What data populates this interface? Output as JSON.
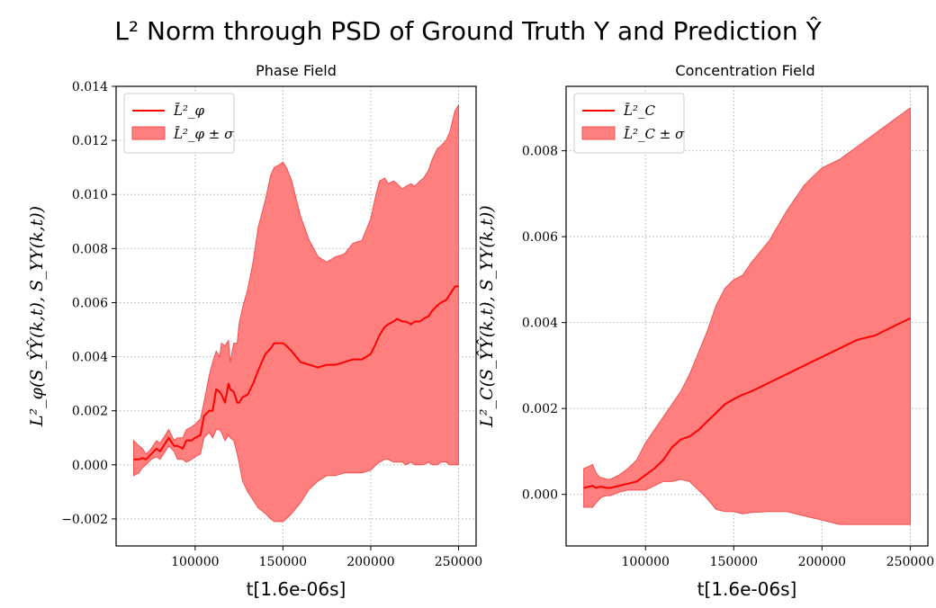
{
  "title_main": "L² Norm through PSD of Ground Truth Y and Prediction Ŷ",
  "colors": {
    "line": "#ff0000",
    "band": "#ff7f7f",
    "grid": "#b0b0b0",
    "axis": "#000000"
  },
  "chart_data": [
    {
      "type": "line",
      "title": "Phase Field",
      "xlabel": "t[1.6e-06s]",
      "ylabel": "L²_φ(S_ŶŶ(k,t), S_YY(k,t))",
      "xlim": [
        55000,
        260000
      ],
      "ylim": [
        -0.003,
        0.014
      ],
      "xticks": [
        100000,
        150000,
        200000,
        250000
      ],
      "xtick_labels": [
        "100000",
        "150000",
        "200000",
        "250000"
      ],
      "yticks": [
        -0.002,
        0.0,
        0.002,
        0.004,
        0.006,
        0.008,
        0.01,
        0.012,
        0.014
      ],
      "ytick_labels": [
        "−0.002",
        "0.000",
        "0.002",
        "0.004",
        "0.006",
        "0.008",
        "0.010",
        "0.012",
        "0.014"
      ],
      "grid": true,
      "legend": {
        "location": "top-left",
        "entries": [
          "L̄²_φ",
          "L̄²_φ ± σ"
        ]
      },
      "series": [
        {
          "name": "mean",
          "x": [
            65000,
            68000,
            70000,
            72000,
            75000,
            78000,
            80000,
            83000,
            85000,
            88000,
            90000,
            93000,
            95000,
            98000,
            100000,
            103000,
            105000,
            108000,
            110000,
            112000,
            114000,
            115000,
            117000,
            119000,
            120000,
            122000,
            124000,
            125000,
            127000,
            130000,
            133000,
            136000,
            140000,
            143000,
            145000,
            148000,
            150000,
            152000,
            155000,
            160000,
            165000,
            170000,
            175000,
            180000,
            185000,
            190000,
            195000,
            200000,
            203000,
            205000,
            208000,
            210000,
            213000,
            215000,
            218000,
            220000,
            223000,
            225000,
            228000,
            230000,
            233000,
            235000,
            238000,
            240000,
            243000,
            245000,
            248000,
            250000
          ],
          "values": [
            0.0002,
            0.0002,
            0.00025,
            0.0002,
            0.0004,
            0.0006,
            0.0005,
            0.0008,
            0.001,
            0.0007,
            0.0007,
            0.0006,
            0.0009,
            0.0009,
            0.001,
            0.0011,
            0.0018,
            0.002,
            0.002,
            0.0028,
            0.0027,
            0.0026,
            0.0023,
            0.003,
            0.0028,
            0.0027,
            0.0023,
            0.0023,
            0.0025,
            0.0026,
            0.003,
            0.0035,
            0.0041,
            0.0043,
            0.0045,
            0.0045,
            0.0045,
            0.0044,
            0.0042,
            0.0038,
            0.0037,
            0.0036,
            0.0037,
            0.0037,
            0.0038,
            0.0039,
            0.0039,
            0.0041,
            0.0045,
            0.0048,
            0.0051,
            0.0052,
            0.0053,
            0.0054,
            0.0053,
            0.0053,
            0.0052,
            0.0053,
            0.0053,
            0.0054,
            0.0055,
            0.0057,
            0.0059,
            0.006,
            0.0061,
            0.0063,
            0.0066,
            0.0066
          ]
        },
        {
          "name": "mean+sigma",
          "x": [
            65000,
            68000,
            70000,
            72000,
            75000,
            78000,
            80000,
            83000,
            85000,
            88000,
            90000,
            93000,
            95000,
            98000,
            100000,
            103000,
            105000,
            108000,
            110000,
            112000,
            114000,
            115000,
            117000,
            119000,
            120000,
            122000,
            124000,
            125000,
            127000,
            130000,
            133000,
            136000,
            140000,
            143000,
            145000,
            148000,
            150000,
            152000,
            155000,
            160000,
            165000,
            170000,
            175000,
            180000,
            185000,
            190000,
            195000,
            200000,
            203000,
            205000,
            208000,
            210000,
            213000,
            215000,
            218000,
            220000,
            223000,
            225000,
            228000,
            230000,
            233000,
            235000,
            238000,
            240000,
            243000,
            245000,
            248000,
            250000
          ],
          "values": [
            0.0009,
            0.0007,
            0.0006,
            0.0004,
            0.0006,
            0.0009,
            0.0008,
            0.0011,
            0.0013,
            0.0009,
            0.001,
            0.001,
            0.0013,
            0.0014,
            0.0015,
            0.0017,
            0.0023,
            0.0033,
            0.0038,
            0.0042,
            0.004,
            0.0045,
            0.0044,
            0.0046,
            0.0038,
            0.0045,
            0.0045,
            0.0052,
            0.0058,
            0.0065,
            0.0075,
            0.0088,
            0.0098,
            0.0107,
            0.011,
            0.0111,
            0.0112,
            0.011,
            0.0105,
            0.0092,
            0.0083,
            0.0077,
            0.0075,
            0.0077,
            0.0078,
            0.0082,
            0.0083,
            0.0091,
            0.01,
            0.0105,
            0.0106,
            0.0104,
            0.0105,
            0.0104,
            0.0102,
            0.0103,
            0.0104,
            0.0103,
            0.0105,
            0.0106,
            0.0109,
            0.0113,
            0.0117,
            0.0118,
            0.012,
            0.0123,
            0.0131,
            0.0133
          ]
        },
        {
          "name": "mean-sigma",
          "x": [
            65000,
            68000,
            70000,
            72000,
            75000,
            78000,
            80000,
            83000,
            85000,
            88000,
            90000,
            93000,
            95000,
            98000,
            100000,
            103000,
            105000,
            108000,
            110000,
            112000,
            114000,
            115000,
            117000,
            119000,
            120000,
            122000,
            124000,
            125000,
            127000,
            130000,
            133000,
            136000,
            140000,
            143000,
            145000,
            148000,
            150000,
            152000,
            155000,
            160000,
            165000,
            170000,
            175000,
            180000,
            185000,
            190000,
            195000,
            200000,
            203000,
            205000,
            208000,
            210000,
            213000,
            215000,
            218000,
            220000,
            223000,
            225000,
            228000,
            230000,
            233000,
            235000,
            238000,
            240000,
            243000,
            245000,
            248000,
            250000
          ],
          "values": [
            -0.0004,
            -0.0003,
            -0.0001,
            0.0,
            0.0002,
            0.0003,
            0.0002,
            0.0005,
            0.0007,
            0.0005,
            0.0002,
            0.0002,
            0.0001,
            0.0002,
            0.0003,
            0.0004,
            0.001,
            0.0012,
            0.001,
            0.0013,
            0.0013,
            0.0012,
            0.0009,
            0.0011,
            0.001,
            0.0009,
            0.0004,
            0.0001,
            -0.0006,
            -0.001,
            -0.0013,
            -0.0016,
            -0.0018,
            -0.002,
            -0.0021,
            -0.0021,
            -0.0021,
            -0.002,
            -0.0018,
            -0.0014,
            -0.0009,
            -0.0006,
            -0.0004,
            -0.0004,
            -0.0003,
            -0.0003,
            -0.0003,
            -0.0002,
            0.0,
            0.0001,
            0.0002,
            0.0002,
            0.0001,
            0.0001,
            0.0001,
            0.0,
            0.0001,
            0.0,
            0.0,
            0.0,
            0.0001,
            0.0,
            0.0,
            0.0001,
            0.0001,
            0.0,
            0.0,
            0.0
          ]
        }
      ]
    },
    {
      "type": "line",
      "title": "Concentration Field",
      "xlabel": "t[1.6e-06s]",
      "ylabel": "L²_C(S_ŶŶ(k,t), S_YY(k,t))",
      "xlim": [
        55000,
        260000
      ],
      "ylim": [
        -0.0012,
        0.0095
      ],
      "xticks": [
        100000,
        150000,
        200000,
        250000
      ],
      "xtick_labels": [
        "100000",
        "150000",
        "200000",
        "250000"
      ],
      "yticks": [
        0.0,
        0.002,
        0.004,
        0.006,
        0.008
      ],
      "ytick_labels": [
        "0.000",
        "0.002",
        "0.004",
        "0.006",
        "0.008"
      ],
      "grid": true,
      "legend": {
        "location": "top-left",
        "entries": [
          "L̄²_C",
          "L̄²_C ± σ"
        ]
      },
      "series": [
        {
          "name": "mean",
          "x": [
            65000,
            68000,
            70000,
            72000,
            74000,
            76000,
            78000,
            80000,
            85000,
            90000,
            95000,
            100000,
            105000,
            110000,
            115000,
            120000,
            125000,
            130000,
            135000,
            140000,
            145000,
            150000,
            155000,
            160000,
            170000,
            180000,
            190000,
            200000,
            210000,
            220000,
            230000,
            240000,
            250000
          ],
          "values": [
            0.00015,
            0.00018,
            0.0002,
            0.00015,
            0.00018,
            0.00017,
            0.00015,
            0.00015,
            0.0002,
            0.00025,
            0.0003,
            0.00045,
            0.0006,
            0.0008,
            0.0011,
            0.00128,
            0.00135,
            0.0015,
            0.0017,
            0.0019,
            0.0021,
            0.00222,
            0.00232,
            0.0024,
            0.0026,
            0.0028,
            0.003,
            0.0032,
            0.0034,
            0.0036,
            0.0037,
            0.0039,
            0.0041
          ]
        },
        {
          "name": "mean+sigma",
          "x": [
            65000,
            68000,
            70000,
            72000,
            74000,
            76000,
            78000,
            80000,
            85000,
            90000,
            95000,
            100000,
            105000,
            110000,
            115000,
            120000,
            125000,
            130000,
            135000,
            140000,
            145000,
            150000,
            155000,
            160000,
            170000,
            180000,
            190000,
            200000,
            210000,
            220000,
            230000,
            240000,
            250000
          ],
          "values": [
            0.0006,
            0.00065,
            0.0007,
            0.0005,
            0.0004,
            0.00038,
            0.00035,
            0.00035,
            0.00045,
            0.0006,
            0.0008,
            0.0012,
            0.0015,
            0.0018,
            0.0021,
            0.0024,
            0.0028,
            0.0033,
            0.0038,
            0.0044,
            0.0048,
            0.005,
            0.0051,
            0.0054,
            0.0059,
            0.0066,
            0.0072,
            0.0076,
            0.0078,
            0.0081,
            0.0084,
            0.0087,
            0.009
          ]
        },
        {
          "name": "mean-sigma",
          "x": [
            65000,
            68000,
            70000,
            72000,
            74000,
            76000,
            78000,
            80000,
            85000,
            90000,
            95000,
            100000,
            105000,
            110000,
            115000,
            120000,
            125000,
            130000,
            135000,
            140000,
            145000,
            150000,
            155000,
            160000,
            170000,
            180000,
            190000,
            200000,
            210000,
            220000,
            230000,
            240000,
            250000
          ],
          "values": [
            -0.0003,
            -0.0003,
            -0.0003,
            -0.0002,
            -0.0001,
            -5e-05,
            -3e-05,
            -3e-05,
            5e-05,
            0.0001,
            0.0001,
            0.0001,
            0.0002,
            0.0003,
            0.0003,
            0.00035,
            0.0003,
            0.0001,
            -0.0001,
            -0.00035,
            -0.0004,
            -0.0004,
            -0.00045,
            -0.00042,
            -0.0004,
            -0.0004,
            -0.0005,
            -0.0006,
            -0.0007,
            -0.0007,
            -0.0007,
            -0.0007,
            -0.0007
          ]
        }
      ]
    }
  ]
}
